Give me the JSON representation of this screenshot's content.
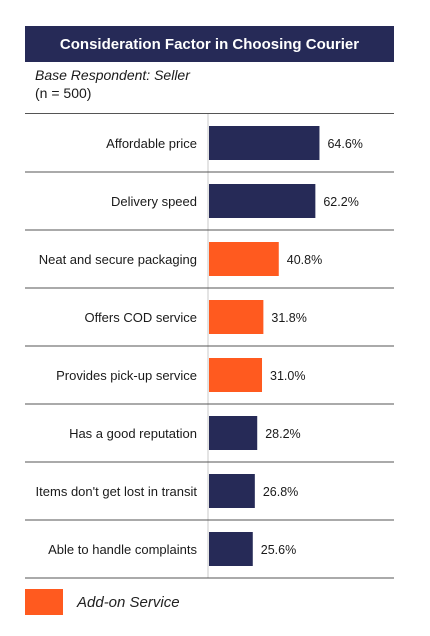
{
  "header": {
    "title": "Consideration Factor in Choosing Courier",
    "base": "Base Respondent: Seller",
    "n": "(n = 500)"
  },
  "colors": {
    "core": "#262a57",
    "addon": "#ff5a1f",
    "title_bg": "#262a57"
  },
  "legend": {
    "label": "Add-on Service"
  },
  "chart_data": {
    "type": "bar",
    "orientation": "horizontal",
    "categories": [
      "Affordable price",
      "Delivery speed",
      "Neat and secure packaging",
      "Offers COD service",
      "Provides pick-up service",
      "Has a good reputation",
      "Items don't get lost in transit",
      "Able to handle complaints"
    ],
    "values": [
      64.6,
      62.2,
      40.8,
      31.8,
      31.0,
      28.2,
      26.8,
      25.6
    ],
    "value_labels": [
      "64.6%",
      "62.2%",
      "40.8%",
      "31.8%",
      "31.0%",
      "28.2%",
      "26.8%",
      "25.6%"
    ],
    "addon": [
      false,
      false,
      true,
      true,
      true,
      false,
      false,
      false
    ],
    "xlim": [
      0,
      100
    ],
    "grid": false,
    "legend_position": "bottom-left"
  }
}
